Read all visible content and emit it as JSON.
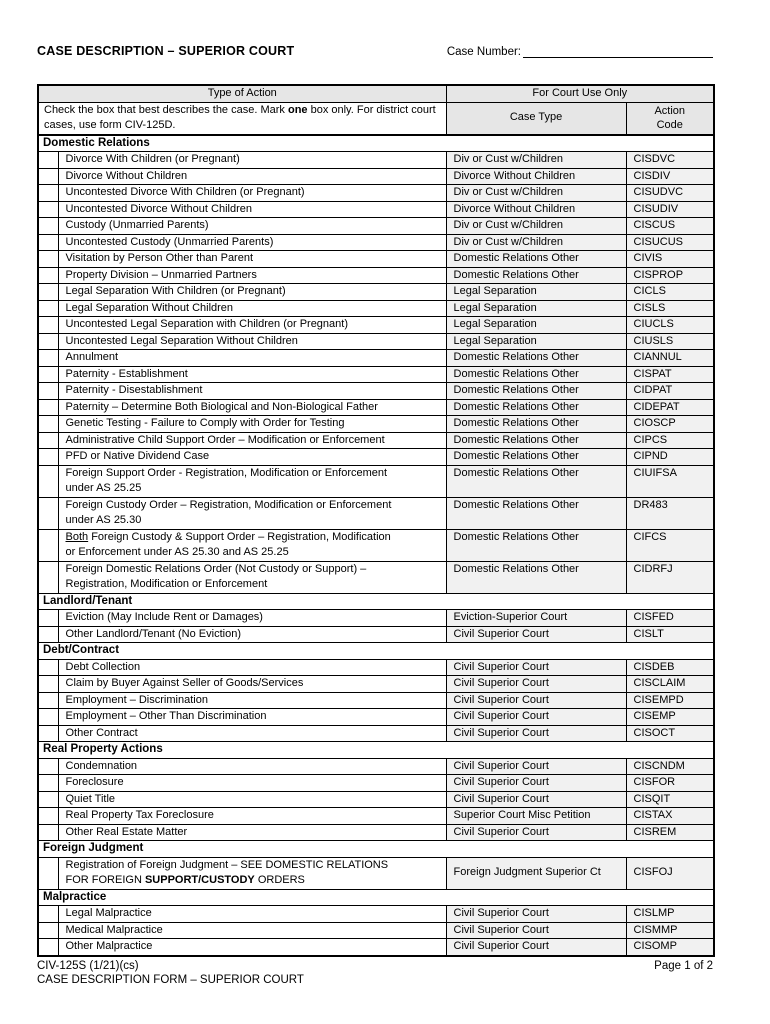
{
  "page": {
    "title": "CASE DESCRIPTION – SUPERIOR COURT",
    "case_number_label": "Case Number:",
    "footer": {
      "form_number": "CIV-125S (1/21)(cs)",
      "page_info": "Page 1 of 2",
      "form_name": "CASE DESCRIPTION FORM – SUPERIOR COURT"
    }
  },
  "table": {
    "header": {
      "type_of_action": "Type of Action",
      "for_court_use": "For Court Use Only",
      "case_type": "Case Type",
      "action_code": "Action\nCode",
      "instructions": [
        {
          "text": "Check the box that best describes the case. Mark "
        },
        {
          "text": "one",
          "bold": true
        },
        {
          "text": " box only.\nFor district court cases, use form CIV-125D."
        }
      ]
    },
    "sections": [
      {
        "title": "Domestic Relations",
        "rows": [
          {
            "label": "Divorce With Children (or Pregnant)",
            "case_type": "Div or Cust w/Children",
            "code": "CISDVC"
          },
          {
            "label": "Divorce Without Children",
            "case_type": "Divorce Without Children",
            "code": "CISDIV"
          },
          {
            "label": "Uncontested Divorce With Children (or Pregnant)",
            "case_type": "Div or Cust w/Children",
            "code": "CISUDVC"
          },
          {
            "label": "Uncontested Divorce Without Children",
            "case_type": "Divorce Without Children",
            "code": "CISUDIV"
          },
          {
            "label": "Custody (Unmarried Parents)",
            "case_type": "Div or Cust w/Children",
            "code": "CISCUS"
          },
          {
            "label": "Uncontested Custody (Unmarried Parents)",
            "case_type": "Div or Cust w/Children",
            "code": "CISUCUS"
          },
          {
            "label": "Visitation by Person Other than Parent",
            "case_type": "Domestic Relations Other",
            "code": "CIVIS"
          },
          {
            "label": "Property Division – Unmarried Partners",
            "case_type": "Domestic Relations Other",
            "code": "CISPROP"
          },
          {
            "label": "Legal Separation With Children (or Pregnant)",
            "case_type": "Legal Separation",
            "code": "CICLS"
          },
          {
            "label": "Legal Separation Without Children",
            "case_type": "Legal Separation",
            "code": "CISLS"
          },
          {
            "label": "Uncontested Legal Separation with Children (or Pregnant)",
            "case_type": "Legal Separation",
            "code": "CIUCLS"
          },
          {
            "label": "Uncontested Legal Separation Without Children",
            "case_type": "Legal Separation",
            "code": "CIUSLS"
          },
          {
            "label": "Annulment",
            "case_type": "Domestic Relations Other",
            "code": "CIANNUL"
          },
          {
            "label": "Paternity - Establishment",
            "case_type": "Domestic Relations Other",
            "code": "CISPAT"
          },
          {
            "label": "Paternity - Disestablishment",
            "case_type": "Domestic Relations Other",
            "code": "CIDPAT"
          },
          {
            "label": "Paternity – Determine Both Biological and Non-Biological Father",
            "case_type": "Domestic Relations Other",
            "code": "CIDEPAT"
          },
          {
            "label": "Genetic Testing - Failure to Comply with Order for Testing",
            "case_type": "Domestic Relations Other",
            "code": "CIOSCP"
          },
          {
            "label": "Administrative Child Support Order – Modification or Enforcement",
            "case_type": "Domestic Relations Other",
            "code": "CIPCS"
          },
          {
            "label": "PFD or Native Dividend Case",
            "case_type": "Domestic Relations Other",
            "code": "CIPND"
          },
          {
            "label": "Foreign Support Order - Registration, Modification or Enforcement\nunder AS 25.25",
            "case_type": "Domestic Relations Other",
            "code": "CIUIFSA"
          },
          {
            "label": "Foreign Custody Order – Registration, Modification or Enforcement\nunder AS 25.30",
            "case_type": "Domestic Relations Other",
            "code": "DR483"
          },
          {
            "label": [
              {
                "text": "Both",
                "underline": true
              },
              {
                "text": " Foreign Custody & Support Order – Registration, Modification\nor Enforcement under AS 25.30 and AS 25.25"
              }
            ],
            "case_type": "Domestic Relations Other",
            "code": "CIFCS"
          },
          {
            "label": "Foreign Domestic Relations Order (Not Custody or Support) –\nRegistration, Modification or Enforcement",
            "case_type": "Domestic Relations Other",
            "code": "CIDRFJ"
          }
        ]
      },
      {
        "title": "Landlord/Tenant",
        "rows": [
          {
            "label": "Eviction (May Include Rent or Damages)",
            "case_type": "Eviction-Superior Court",
            "code": "CISFED"
          },
          {
            "label": "Other Landlord/Tenant (No Eviction)",
            "case_type": "Civil Superior Court",
            "code": "CISLT"
          }
        ]
      },
      {
        "title": "Debt/Contract",
        "rows": [
          {
            "label": "Debt Collection",
            "case_type": "Civil Superior Court",
            "code": "CISDEB"
          },
          {
            "label": "Claim by Buyer Against Seller of Goods/Services",
            "case_type": "Civil Superior Court",
            "code": "CISCLAIM"
          },
          {
            "label": "Employment – Discrimination",
            "case_type": "Civil Superior Court",
            "code": "CISEMPD"
          },
          {
            "label": "Employment – Other Than Discrimination",
            "case_type": "Civil Superior Court",
            "code": "CISEMP"
          },
          {
            "label": "Other Contract",
            "case_type": "Civil Superior Court",
            "code": "CISOCT"
          }
        ]
      },
      {
        "title": "Real Property Actions",
        "rows": [
          {
            "label": "Condemnation",
            "case_type": "Civil Superior Court",
            "code": "CISCNDM"
          },
          {
            "label": "Foreclosure",
            "case_type": "Civil Superior Court",
            "code": "CISFOR"
          },
          {
            "label": "Quiet Title",
            "case_type": "Civil Superior Court",
            "code": "CISQIT"
          },
          {
            "label": "Real Property Tax Foreclosure",
            "case_type": "Superior Court Misc Petition",
            "code": "CISTAX"
          },
          {
            "label": "Other Real Estate Matter",
            "case_type": "Civil Superior Court",
            "code": "CISREM"
          }
        ]
      },
      {
        "title": "Foreign Judgment",
        "rows": [
          {
            "label": [
              {
                "text": "Registration of Foreign Judgment – SEE DOMESTIC RELATIONS\nFOR FOREIGN "
              },
              {
                "text": "SUPPORT/CUSTODY",
                "bold": true
              },
              {
                "text": " ORDERS"
              }
            ],
            "case_type": "Foreign Judgment Superior Ct",
            "code": "CISFOJ",
            "valign_middle": true
          }
        ]
      },
      {
        "title": "Malpractice",
        "rows": [
          {
            "label": "Legal Malpractice",
            "case_type": "Civil Superior Court",
            "code": "CISLMP"
          },
          {
            "label": "Medical Malpractice",
            "case_type": "Civil Superior Court",
            "code": "CISMMP"
          },
          {
            "label": "Other Malpractice",
            "case_type": "Civil Superior Court",
            "code": "CISOMP"
          }
        ]
      }
    ]
  }
}
